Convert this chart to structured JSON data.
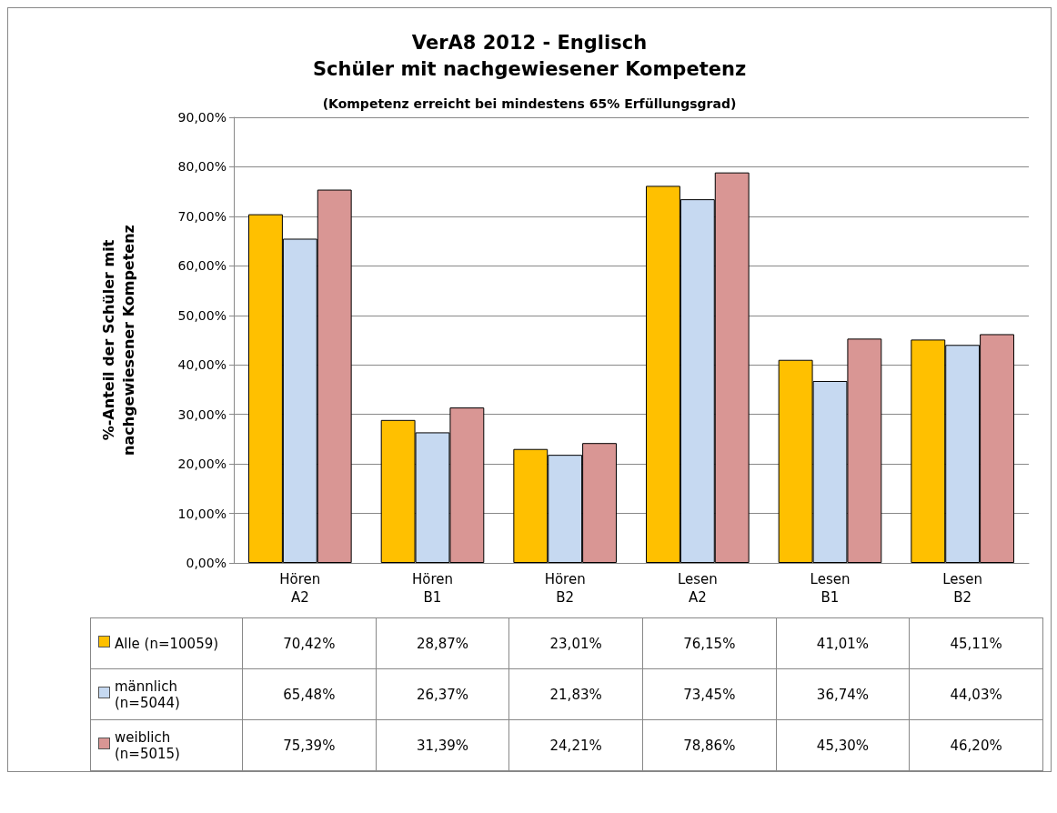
{
  "chart_data": {
    "type": "bar",
    "title": "VerA8 2012 - Englisch",
    "subtitle": "Schüler mit nachgewiesener Kompetenz",
    "annotations": [
      "(Kompetenz erreicht bei mindestens 65% Erfüllungsgrad)"
    ],
    "ylabel": "%-Anteil der Schüler mit nachgewiesener Kompetenz",
    "categories": [
      "Hören A2",
      "Hören B1",
      "Hören B2",
      "Lesen A2",
      "Lesen B1",
      "Lesen B2"
    ],
    "series": [
      {
        "name": "Alle (n=10059)",
        "color": "#ffc000",
        "values": [
          70.42,
          28.87,
          23.01,
          76.15,
          41.01,
          45.11
        ],
        "value_labels": [
          "70,42%",
          "28,87%",
          "23,01%",
          "76,15%",
          "41,01%",
          "45,11%"
        ]
      },
      {
        "name": "männlich (n=5044)",
        "color": "#c6d9f1",
        "values": [
          65.48,
          26.37,
          21.83,
          73.45,
          36.74,
          44.03
        ],
        "value_labels": [
          "65,48%",
          "26,37%",
          "21,83%",
          "73,45%",
          "36,74%",
          "44,03%"
        ]
      },
      {
        "name": "weiblich (n=5015)",
        "color": "#d99694",
        "values": [
          75.39,
          31.39,
          24.21,
          78.86,
          45.3,
          46.2
        ],
        "value_labels": [
          "75,39%",
          "31,39%",
          "24,21%",
          "78,86%",
          "45,30%",
          "46,20%"
        ]
      }
    ],
    "ylim": [
      0,
      90
    ],
    "yticks": [
      {
        "value": 0,
        "label": "0,00%"
      },
      {
        "value": 10,
        "label": "10,00%"
      },
      {
        "value": 20,
        "label": "20,00%"
      },
      {
        "value": 30,
        "label": "30,00%"
      },
      {
        "value": 40,
        "label": "40,00%"
      },
      {
        "value": 50,
        "label": "50,00%"
      },
      {
        "value": 60,
        "label": "60,00%"
      },
      {
        "value": 70,
        "label": "70,00%"
      },
      {
        "value": 80,
        "label": "80,00%"
      },
      {
        "value": 90,
        "label": "90,00%"
      }
    ],
    "grid": "y",
    "legend": "bottom"
  }
}
